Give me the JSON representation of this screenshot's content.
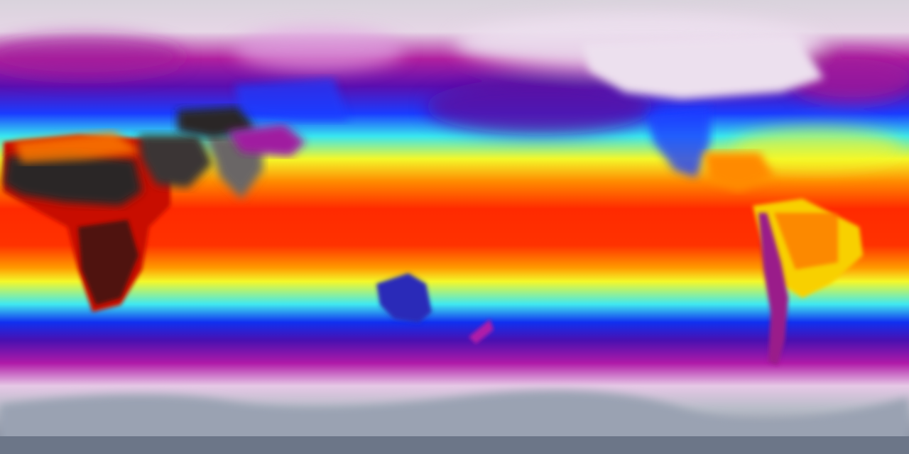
{
  "map": {
    "projection": "equirectangular",
    "colormap": {
      "bands": [
        {
          "stop": 0.0,
          "color": "#d9d3dc"
        },
        {
          "stop": 0.07,
          "color": "#e6d6e6"
        },
        {
          "stop": 0.13,
          "color": "#b0209f"
        },
        {
          "stop": 0.19,
          "color": "#5a0fb0"
        },
        {
          "stop": 0.25,
          "color": "#1a3cff"
        },
        {
          "stop": 0.3,
          "color": "#38e6f0"
        },
        {
          "stop": 0.35,
          "color": "#f4f82a"
        },
        {
          "stop": 0.4,
          "color": "#ff8a00"
        },
        {
          "stop": 0.46,
          "color": "#ff2a00"
        },
        {
          "stop": 0.54,
          "color": "#ff3200"
        },
        {
          "stop": 0.59,
          "color": "#ff9a00"
        },
        {
          "stop": 0.62,
          "color": "#f4f82a"
        },
        {
          "stop": 0.67,
          "color": "#40e8f0"
        },
        {
          "stop": 0.71,
          "color": "#1030f0"
        },
        {
          "stop": 0.75,
          "color": "#4a10b0"
        },
        {
          "stop": 0.8,
          "color": "#b01aa8"
        },
        {
          "stop": 0.85,
          "color": "#e6c8e6"
        },
        {
          "stop": 0.9,
          "color": "#b8bcc8"
        },
        {
          "stop": 1.0,
          "color": "#6c7688"
        }
      ]
    },
    "land_colors": {
      "desert": "#2a2626",
      "desert_light": "#8a8a8a",
      "plateau": "#a01aa0",
      "australia": "#2a2ab8",
      "amazon": "#f8d000",
      "andes": "#9a1a8a",
      "polar": "#ece0ee"
    }
  }
}
